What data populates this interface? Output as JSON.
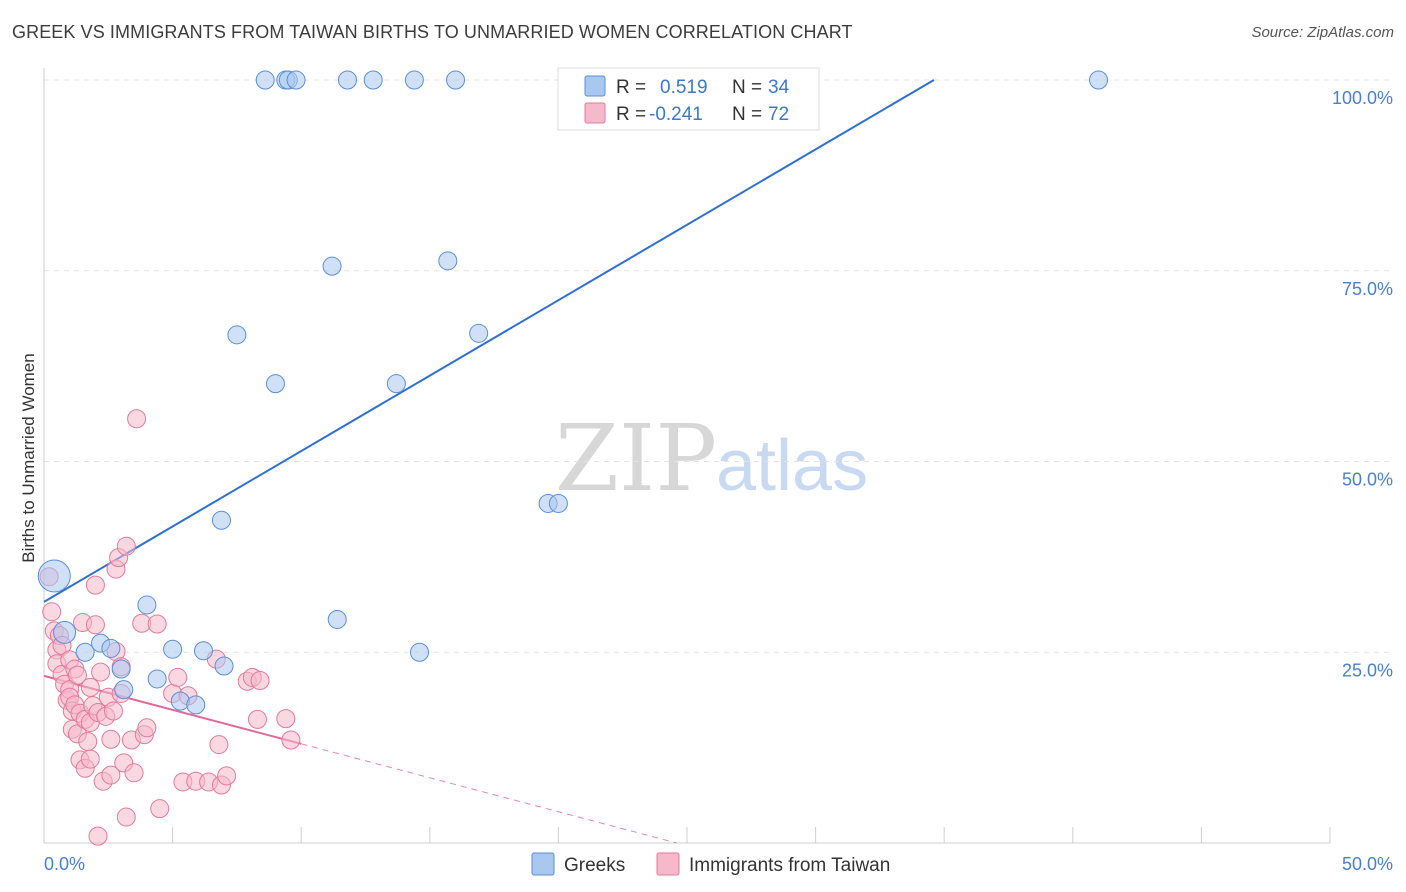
{
  "title": "GREEK VS IMMIGRANTS FROM TAIWAN BIRTHS TO UNMARRIED WOMEN CORRELATION CHART",
  "source": "Source: ZipAtlas.com",
  "watermark": {
    "zip": "ZIP",
    "atlas": "atlas"
  },
  "legend": {
    "rows": [
      {
        "r_label": "R =",
        "r_value": "0.519",
        "n_label": "N =",
        "n_value": "34",
        "color": "#a9c8f0",
        "stroke": "#5b8fd8"
      },
      {
        "r_label": "R =",
        "r_value": "-0.241",
        "n_label": "N =",
        "n_value": "72",
        "color": "#f6b8cb",
        "stroke": "#e37a9c"
      }
    ]
  },
  "bottom_legend": [
    {
      "label": "Greeks",
      "color": "#a9c8f0",
      "stroke": "#5b8fd8"
    },
    {
      "label": "Immigrants from Taiwan",
      "color": "#f6b8cb",
      "stroke": "#e37a9c"
    }
  ],
  "chart_data": {
    "type": "scatter",
    "title": "GREEK VS IMMIGRANTS FROM TAIWAN BIRTHS TO UNMARRIED WOMEN CORRELATION CHART",
    "xlabel": "",
    "ylabel": "Births to Unmarried Women",
    "xlim": [
      0,
      50
    ],
    "ylim": [
      0,
      100
    ],
    "x_tick_labels": [
      "0.0%",
      "50.0%"
    ],
    "y_ticks": [
      25,
      50,
      75,
      100
    ],
    "y_tick_labels": [
      "25.0%",
      "50.0%",
      "75.0%",
      "100.0%"
    ],
    "grid": true,
    "series": [
      {
        "name": "Greeks",
        "color": "#a9c8f0",
        "stroke": "#5b8fd8",
        "line_color": "#2f6fd0",
        "trend": {
          "x0": 0,
          "y0": 31.6,
          "x1": 34.6,
          "y1": 100
        },
        "points": [
          [
            0.4,
            35,
            16
          ],
          [
            0.8,
            27.6,
            11
          ],
          [
            1.6,
            25,
            9
          ],
          [
            2.2,
            26.2,
            9
          ],
          [
            2.6,
            25.5,
            9
          ],
          [
            3.0,
            22.8,
            9
          ],
          [
            3.1,
            20.1,
            9
          ],
          [
            4.0,
            31.2,
            9
          ],
          [
            4.4,
            21.5,
            9
          ],
          [
            5.0,
            25.4,
            9
          ],
          [
            5.3,
            18.6,
            9
          ],
          [
            5.9,
            18.1,
            9
          ],
          [
            6.2,
            25.2,
            9
          ],
          [
            7.0,
            23.2,
            9
          ],
          [
            6.9,
            42.3,
            9
          ],
          [
            7.5,
            66.6,
            9
          ],
          [
            9.0,
            60.2,
            9
          ],
          [
            11.2,
            75.6,
            9
          ],
          [
            11.4,
            29.3,
            9
          ],
          [
            13.7,
            60.2,
            9
          ],
          [
            14.6,
            25.0,
            9
          ],
          [
            15.7,
            76.3,
            9
          ],
          [
            16.9,
            66.8,
            9
          ],
          [
            19.6,
            44.5,
            9
          ],
          [
            20.0,
            44.5,
            9
          ],
          [
            8.6,
            100,
            9
          ],
          [
            9.4,
            100,
            9
          ],
          [
            9.5,
            100,
            9
          ],
          [
            9.8,
            100,
            9
          ],
          [
            11.8,
            100,
            9
          ],
          [
            12.8,
            100,
            9
          ],
          [
            14.4,
            100,
            9
          ],
          [
            16.0,
            100,
            9
          ],
          [
            41.0,
            100,
            9
          ]
        ]
      },
      {
        "name": "Immigrants from Taiwan",
        "color": "#f6b8cb",
        "stroke": "#e37a9c",
        "line_color": "#e0699a",
        "trend": {
          "x0": 0,
          "y0": 21.9,
          "x1": 10,
          "y1": 13.0
        },
        "trend_dashed": {
          "x0": 10,
          "y0": 13.0,
          "x1": 24.6,
          "y1": 0
        },
        "points": [
          [
            0.2,
            34.9,
            9
          ],
          [
            0.3,
            30.3,
            9
          ],
          [
            0.4,
            27.8,
            9
          ],
          [
            0.5,
            25.3,
            9
          ],
          [
            0.5,
            23.5,
            9
          ],
          [
            0.6,
            27.2,
            9
          ],
          [
            0.7,
            25.9,
            9
          ],
          [
            0.7,
            22.1,
            9
          ],
          [
            0.8,
            20.8,
            9
          ],
          [
            0.9,
            18.7,
            9
          ],
          [
            1.0,
            24.0,
            9
          ],
          [
            1.0,
            20.1,
            9
          ],
          [
            1.0,
            19.1,
            9
          ],
          [
            1.1,
            17.3,
            9
          ],
          [
            1.1,
            14.9,
            9
          ],
          [
            1.2,
            22.8,
            9
          ],
          [
            1.2,
            18.1,
            9
          ],
          [
            1.3,
            22.0,
            9
          ],
          [
            1.3,
            14.3,
            9
          ],
          [
            1.4,
            17.0,
            9
          ],
          [
            1.4,
            10.9,
            9
          ],
          [
            1.5,
            28.9,
            9
          ],
          [
            1.6,
            16.2,
            9
          ],
          [
            1.6,
            9.8,
            9
          ],
          [
            1.7,
            13.3,
            9
          ],
          [
            1.8,
            20.4,
            9
          ],
          [
            1.8,
            15.8,
            9
          ],
          [
            1.8,
            11.0,
            9
          ],
          [
            1.9,
            18.0,
            9
          ],
          [
            2.0,
            28.6,
            9
          ],
          [
            2.0,
            33.8,
            9
          ],
          [
            2.1,
            17.1,
            9
          ],
          [
            2.2,
            22.4,
            9
          ],
          [
            2.3,
            8.1,
            9
          ],
          [
            2.4,
            16.6,
            9
          ],
          [
            2.5,
            19.1,
            9
          ],
          [
            2.6,
            13.6,
            9
          ],
          [
            2.6,
            8.9,
            9
          ],
          [
            2.7,
            17.3,
            9
          ],
          [
            2.8,
            25.1,
            9
          ],
          [
            2.8,
            35.9,
            9
          ],
          [
            2.9,
            37.4,
            9
          ],
          [
            3.0,
            23.1,
            9
          ],
          [
            3.0,
            19.6,
            9
          ],
          [
            3.1,
            10.5,
            9
          ],
          [
            3.2,
            3.4,
            9
          ],
          [
            3.2,
            38.9,
            9
          ],
          [
            3.4,
            13.5,
            9
          ],
          [
            3.5,
            9.2,
            9
          ],
          [
            3.6,
            55.6,
            9
          ],
          [
            3.8,
            28.8,
            9
          ],
          [
            3.9,
            14.2,
            9
          ],
          [
            4.0,
            15.1,
            9
          ],
          [
            4.4,
            28.7,
            9
          ],
          [
            4.5,
            4.5,
            9
          ],
          [
            5.0,
            19.6,
            9
          ],
          [
            5.2,
            21.7,
            9
          ],
          [
            5.4,
            8.0,
            9
          ],
          [
            5.6,
            19.3,
            9
          ],
          [
            5.9,
            8.1,
            9
          ],
          [
            6.4,
            8.0,
            9
          ],
          [
            6.7,
            24.1,
            9
          ],
          [
            6.8,
            12.9,
            9
          ],
          [
            6.9,
            7.6,
            9
          ],
          [
            7.1,
            8.8,
            9
          ],
          [
            7.9,
            21.2,
            9
          ],
          [
            8.1,
            21.7,
            9
          ],
          [
            8.3,
            16.2,
            9
          ],
          [
            8.4,
            21.3,
            9
          ],
          [
            9.4,
            16.3,
            9
          ],
          [
            9.6,
            13.5,
            9
          ],
          [
            2.1,
            0.9,
            9
          ]
        ]
      }
    ]
  }
}
